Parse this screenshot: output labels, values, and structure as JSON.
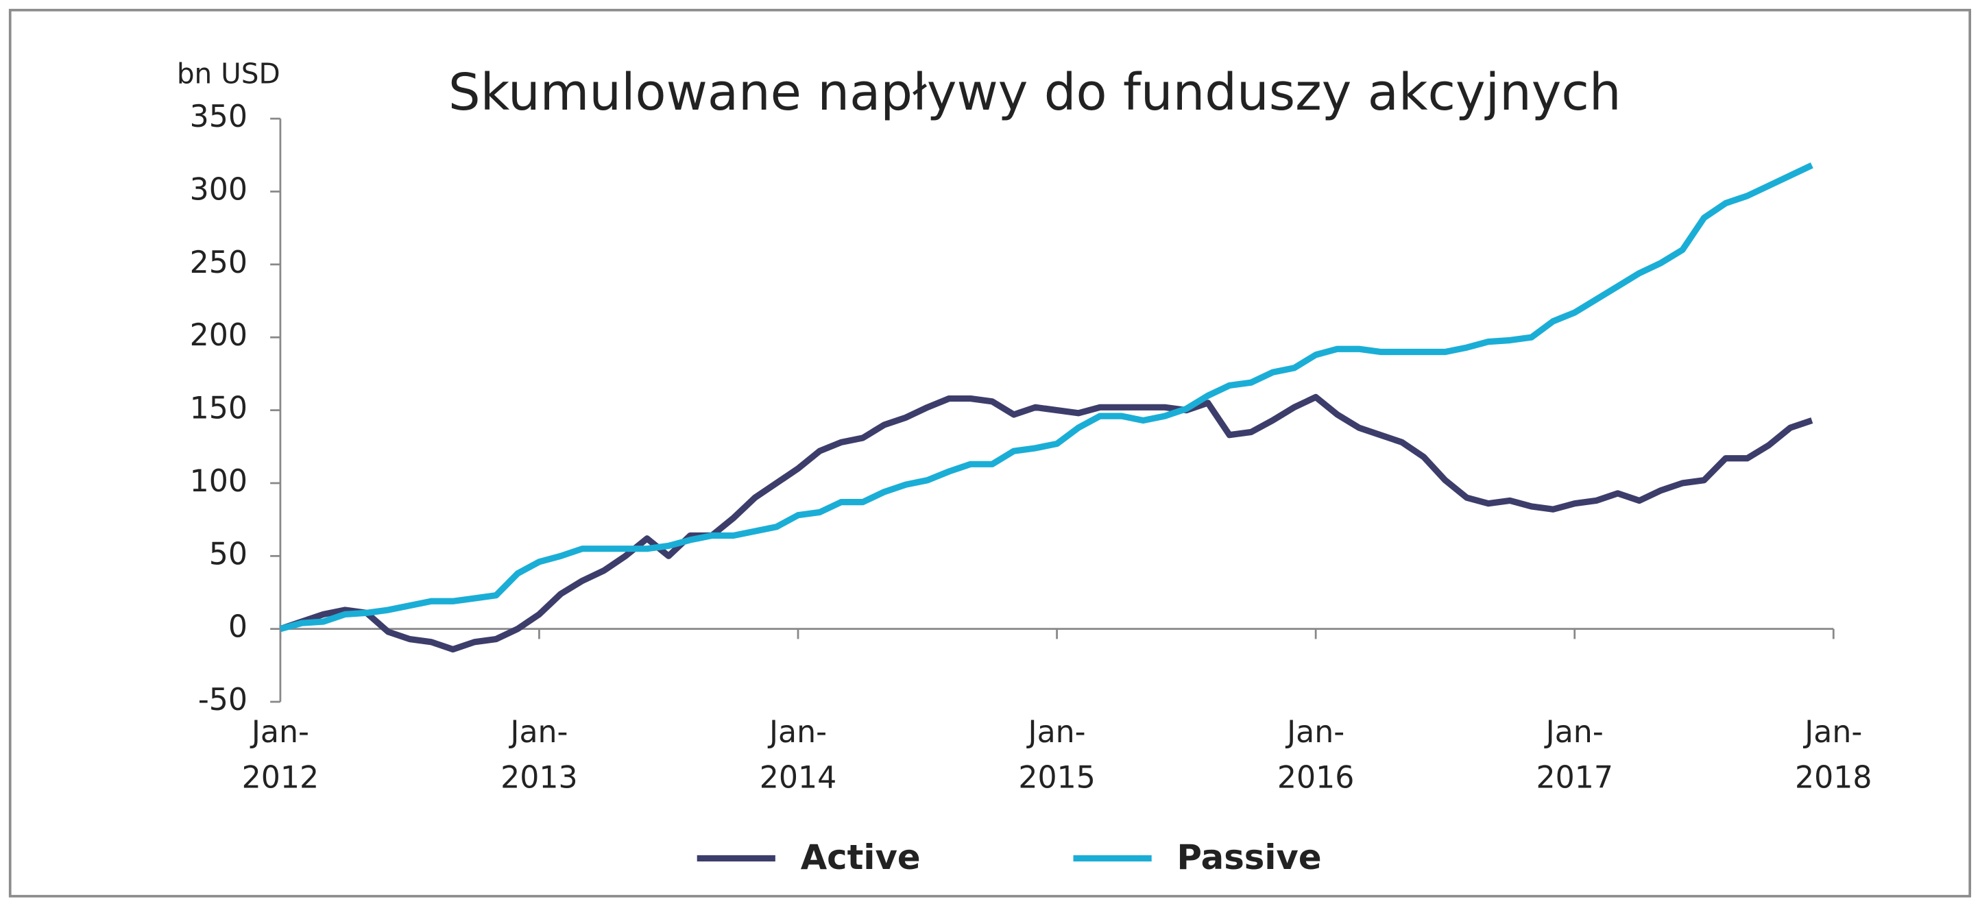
{
  "chart_data": {
    "type": "line",
    "title": "Skumulowane napływy do funduszy akcyjnych",
    "y_label": "bn USD",
    "categories": [
      "Jan-\n2012",
      null,
      null,
      null,
      null,
      null,
      null,
      null,
      null,
      null,
      null,
      null,
      "Jan-\n2013",
      null,
      null,
      null,
      null,
      null,
      null,
      null,
      null,
      null,
      null,
      null,
      "Jan-\n2014",
      null,
      null,
      null,
      null,
      null,
      null,
      null,
      null,
      null,
      null,
      null,
      "Jan-\n2015",
      null,
      null,
      null,
      null,
      null,
      null,
      null,
      null,
      null,
      null,
      null,
      "Jan-\n2016",
      null,
      null,
      null,
      null,
      null,
      null,
      null,
      null,
      null,
      null,
      null,
      "Jan-\n2017",
      null,
      null,
      null,
      null,
      null,
      null,
      null,
      null,
      null,
      null,
      null,
      "Jan-\n2018"
    ],
    "series": [
      {
        "name": "Active",
        "color": "#3d3d6b",
        "values": [
          0,
          5,
          10,
          13,
          11,
          -2,
          -7,
          -9,
          -14,
          -9,
          -7,
          0,
          10,
          24,
          33,
          40,
          50,
          62,
          50,
          64,
          64,
          76,
          90,
          100,
          110,
          122,
          128,
          131,
          140,
          145,
          152,
          158,
          158,
          156,
          147,
          152,
          150,
          148,
          152,
          152,
          152,
          152,
          150,
          155,
          133,
          135,
          143,
          152,
          159,
          147,
          138,
          133,
          128,
          118,
          102,
          90,
          86,
          88,
          84,
          82,
          86,
          88,
          93,
          88,
          95,
          100,
          102,
          117,
          117,
          126,
          138,
          143,
          null
        ]
      },
      {
        "name": "Passive",
        "color": "#1aaed6",
        "values": [
          0,
          4,
          5,
          10,
          11,
          13,
          16,
          19,
          19,
          21,
          23,
          38,
          46,
          50,
          55,
          55,
          55,
          55,
          57,
          61,
          64,
          64,
          67,
          70,
          78,
          80,
          87,
          87,
          94,
          99,
          102,
          108,
          113,
          113,
          122,
          124,
          127,
          138,
          146,
          146,
          143,
          146,
          151,
          160,
          167,
          169,
          176,
          179,
          188,
          192,
          192,
          190,
          190,
          190,
          190,
          193,
          197,
          198,
          200,
          211,
          217,
          226,
          235,
          244,
          251,
          260,
          282,
          292,
          297,
          304,
          311,
          318,
          null
        ]
      }
    ],
    "ylim": [
      -50,
      350
    ],
    "yticks": [
      -50,
      0,
      50,
      100,
      150,
      200,
      250,
      300,
      350
    ],
    "legend": "bottom"
  }
}
